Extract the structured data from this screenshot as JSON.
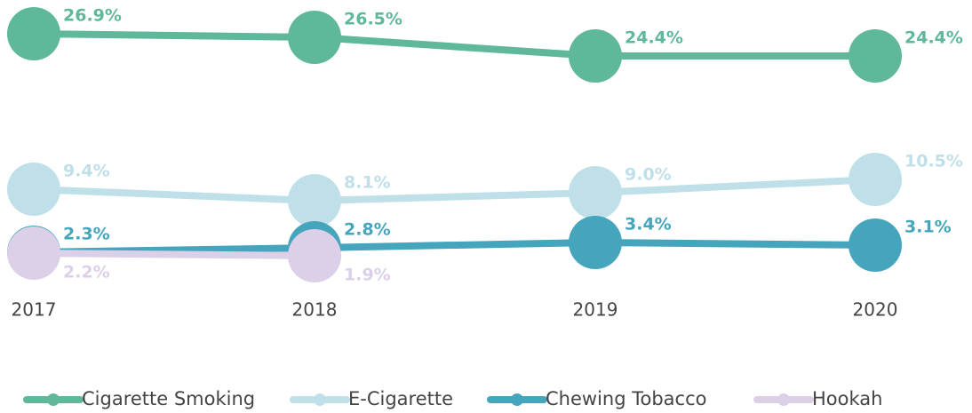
{
  "chart_data": {
    "type": "line",
    "categories": [
      "2017",
      "2018",
      "2019",
      "2020"
    ],
    "series": [
      {
        "name": "Cigarette Smoking",
        "color": "#5fb899",
        "values": [
          26.9,
          26.5,
          24.4,
          24.4
        ],
        "value_labels": [
          "26.9%",
          "26.5%",
          "24.4%",
          "24.4%"
        ]
      },
      {
        "name": "E-Cigarette",
        "color": "#bfe0e8",
        "values": [
          9.4,
          8.1,
          9.0,
          10.5
        ],
        "value_labels": [
          "9.4%",
          "8.1%",
          "9.0%",
          "10.5%"
        ]
      },
      {
        "name": "Chewing Tobacco",
        "color": "#45a5bd",
        "values": [
          2.3,
          2.8,
          3.4,
          3.1
        ],
        "value_labels": [
          "2.3%",
          "2.8%",
          "3.4%",
          "3.1%"
        ]
      },
      {
        "name": "Hookah",
        "color": "#dcd0e8",
        "values": [
          2.2,
          1.9,
          null,
          null
        ],
        "value_labels": [
          "2.2%",
          "1.9%",
          null,
          null
        ]
      }
    ],
    "legend": "bottom"
  }
}
